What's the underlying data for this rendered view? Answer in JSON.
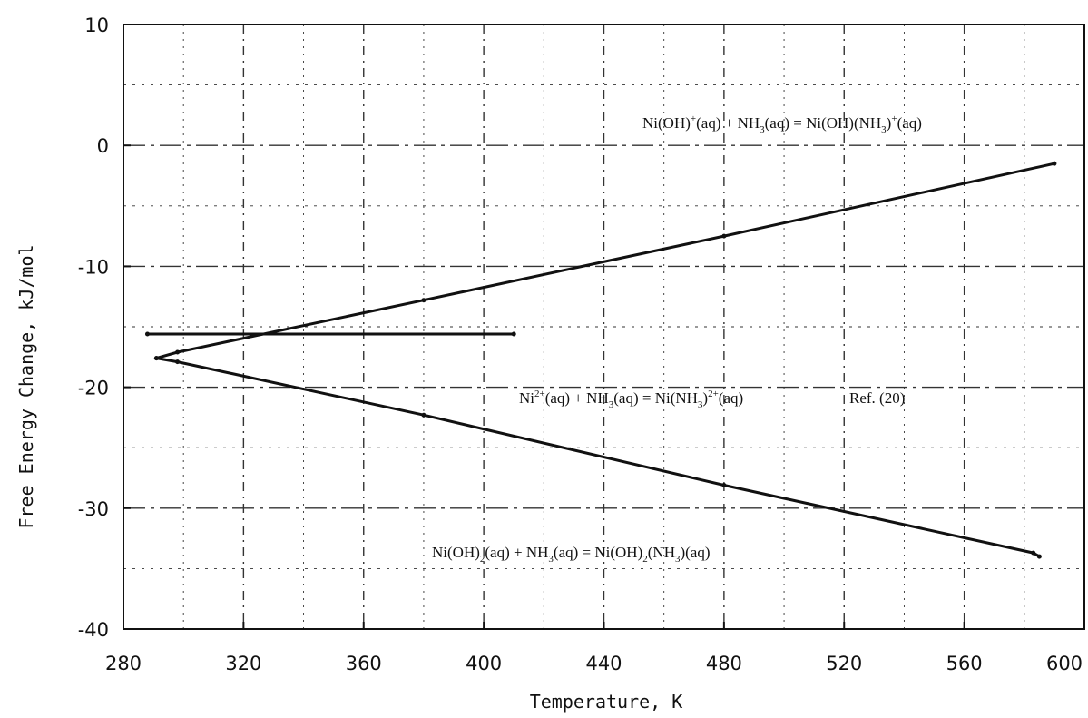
{
  "chart_data": {
    "type": "line",
    "title": "",
    "xlabel": "Temperature, K",
    "ylabel": "Free Energy Change, kJ/mol",
    "xlim": [
      280,
      600
    ],
    "ylim": [
      -40,
      10
    ],
    "xticks": [
      "280",
      "320",
      "360",
      "400",
      "440",
      "480",
      "520",
      "560",
      "600"
    ],
    "yticks": [
      "10",
      "0",
      "-10",
      "-20",
      "-30",
      "-40"
    ],
    "grid": true,
    "series": [
      {
        "name": "Ni(OH)+(aq) + NH3(aq) = Ni(OH)(NH3)+(aq)",
        "color": "#111111",
        "x": [
          291,
          298,
          380,
          480,
          590
        ],
        "y": [
          -17.6,
          -17.1,
          -12.8,
          -7.5,
          -1.5
        ]
      },
      {
        "name": "Ni2+(aq) + NH3(aq) = Ni(NH3)2+(aq)",
        "color": "#111111",
        "x": [
          288,
          410
        ],
        "y": [
          -15.6,
          -15.6
        ]
      },
      {
        "name": "Ni(OH)2(aq) + NH3(aq) = Ni(OH)2(NH3)(aq)",
        "color": "#111111",
        "x": [
          291,
          298,
          380,
          480,
          583,
          585
        ],
        "y": [
          -17.6,
          -17.9,
          -22.3,
          -28.1,
          -33.7,
          -34.0
        ]
      }
    ],
    "annotations": {
      "a1": {
        "t1": "Ni(OH)",
        "s1": "+",
        "t2": "(aq) + NH",
        "b1": "3",
        "t3": "(aq) = Ni(OH)(NH",
        "b2": "3",
        "t4": ")",
        "s2": "+",
        "t5": "(aq)"
      },
      "a2": {
        "t1": "Ni",
        "s1": "2+",
        "t2": "(aq) + NH",
        "b1": "3",
        "t3": "(aq) = Ni(NH",
        "b2": "3",
        "t4": ")",
        "s2": "2+",
        "t5": "(aq)"
      },
      "a2ref": "Ref. (20)",
      "a3": {
        "t1": "Ni(OH)",
        "b1": "2",
        "t2": "(aq) + NH",
        "b2": "3",
        "t3": "(aq) = Ni(OH)",
        "b3": "2",
        "t4": "(NH",
        "b4": "3",
        "t5": ")(aq)"
      }
    }
  }
}
